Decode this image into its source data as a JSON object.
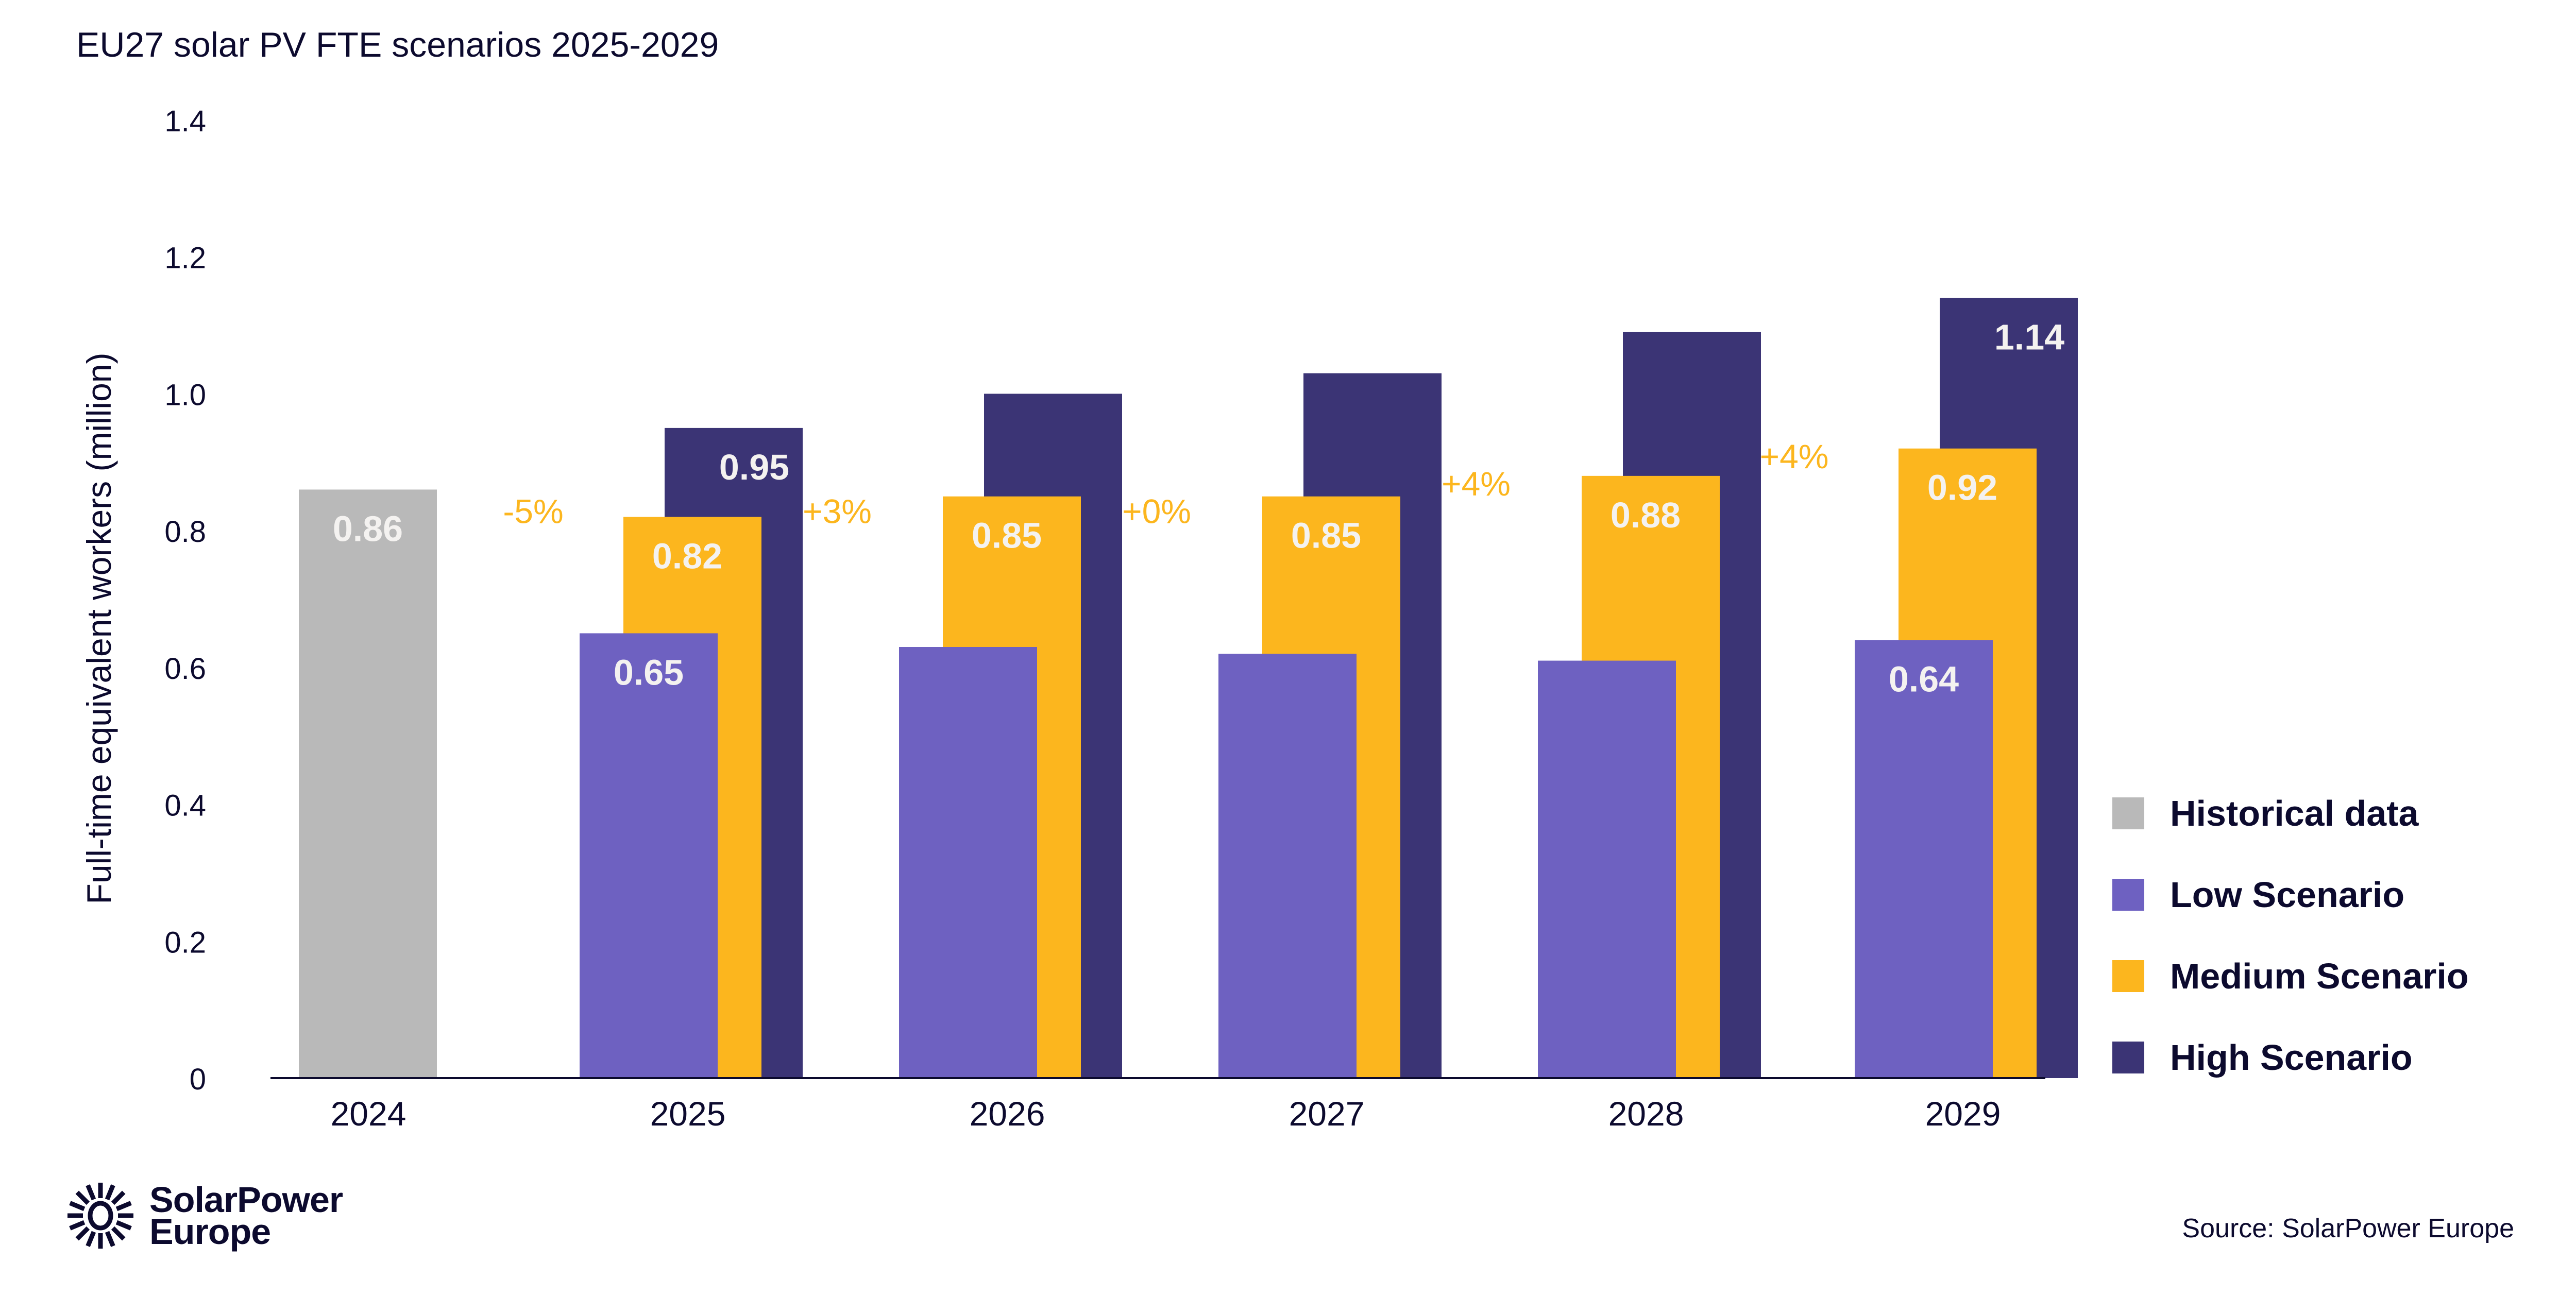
{
  "chart_data": {
    "type": "bar",
    "title": "EU27 solar PV FTE scenarios 2025-2029",
    "xlabel": "",
    "ylabel": "Full-time equivalent workers (million)",
    "ylim": [
      0,
      1.4
    ],
    "yticks": [
      0,
      0.2,
      0.4,
      0.6,
      0.8,
      1.0,
      1.2,
      1.4
    ],
    "ytick_labels": [
      "0",
      "0.2",
      "0.4",
      "0.6",
      "0.8",
      "1.0",
      "1.2",
      "1.4"
    ],
    "categories": [
      "2024",
      "2025",
      "2026",
      "2027",
      "2028",
      "2029"
    ],
    "grid": false,
    "legend_position": "right",
    "series": [
      {
        "name": "Historical data",
        "color": "#b9b9b9",
        "values": [
          0.86,
          null,
          null,
          null,
          null,
          null
        ],
        "labels": [
          "0.86",
          "",
          "",
          "",
          "",
          ""
        ]
      },
      {
        "name": "Low Scenario",
        "color": "#6e61c1",
        "values": [
          null,
          0.65,
          0.63,
          0.62,
          0.61,
          0.64
        ],
        "labels": [
          "",
          "0.65",
          "",
          "",
          "",
          "0.64"
        ]
      },
      {
        "name": "Medium Scenario",
        "color": "#fcb61e",
        "values": [
          null,
          0.82,
          0.85,
          0.85,
          0.88,
          0.92
        ],
        "labels": [
          "",
          "0.82",
          "0.85",
          "0.85",
          "0.88",
          "0.92"
        ]
      },
      {
        "name": "High Scenario",
        "color": "#3b3475",
        "values": [
          null,
          0.95,
          1.0,
          1.03,
          1.09,
          1.14
        ],
        "labels": [
          "",
          "0.95",
          "",
          "",
          "",
          "1.14"
        ]
      }
    ],
    "annotations": [
      {
        "text": "-5%",
        "between": [
          "2024",
          "2025"
        ],
        "y": 0.83
      },
      {
        "text": "+3%",
        "between": [
          "2025",
          "2026"
        ],
        "y": 0.83
      },
      {
        "text": "+0%",
        "between": [
          "2026",
          "2027"
        ],
        "y": 0.83
      },
      {
        "text": "+4%",
        "between": [
          "2027",
          "2028"
        ],
        "y": 0.87
      },
      {
        "text": "+4%",
        "between": [
          "2028",
          "2029"
        ],
        "y": 0.91
      }
    ],
    "annotation_color": "#fcb61e"
  },
  "source": "Source: SolarPower Europe",
  "logo": {
    "line1": "SolarPower",
    "line2": "Europe"
  },
  "colors": {
    "text": "#0c0a2e",
    "axis": "#0c0a2e"
  }
}
